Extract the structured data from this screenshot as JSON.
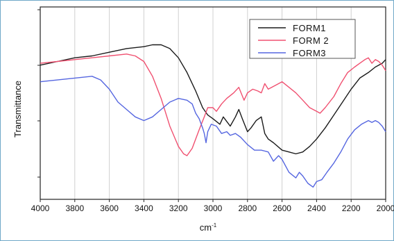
{
  "chart_data": {
    "type": "line",
    "xlabel": "cm",
    "xlabel_superscript": "-1",
    "ylabel": "Transmittance",
    "xlim": [
      4000,
      2000
    ],
    "x_reversed": true,
    "x_ticks": [
      "4000",
      "3800",
      "3600",
      "3400",
      "3200",
      "3000",
      "2800",
      "2600",
      "2400",
      "2200",
      "2000"
    ],
    "grid": "vertical",
    "legend_position": "top-right",
    "y_units_shown": false,
    "ylim": [
      0,
      100
    ],
    "series": [
      {
        "name": "FORM1",
        "color": "#1a1a1a",
        "points": [
          [
            4000,
            70
          ],
          [
            3900,
            72
          ],
          [
            3800,
            74
          ],
          [
            3700,
            75
          ],
          [
            3600,
            77
          ],
          [
            3500,
            79
          ],
          [
            3400,
            80
          ],
          [
            3350,
            81
          ],
          [
            3300,
            81
          ],
          [
            3250,
            79
          ],
          [
            3200,
            74
          ],
          [
            3150,
            66
          ],
          [
            3100,
            56
          ],
          [
            3060,
            47
          ],
          [
            3030,
            43
          ],
          [
            3000,
            41
          ],
          [
            2960,
            38
          ],
          [
            2940,
            42
          ],
          [
            2900,
            37
          ],
          [
            2870,
            42
          ],
          [
            2850,
            46
          ],
          [
            2830,
            41
          ],
          [
            2800,
            34
          ],
          [
            2780,
            36
          ],
          [
            2750,
            40
          ],
          [
            2720,
            42
          ],
          [
            2700,
            33
          ],
          [
            2680,
            30
          ],
          [
            2650,
            28
          ],
          [
            2600,
            24
          ],
          [
            2560,
            23
          ],
          [
            2520,
            22
          ],
          [
            2480,
            23
          ],
          [
            2440,
            26
          ],
          [
            2400,
            30
          ],
          [
            2350,
            36
          ],
          [
            2300,
            43
          ],
          [
            2250,
            50
          ],
          [
            2200,
            57
          ],
          [
            2150,
            63
          ],
          [
            2100,
            66
          ],
          [
            2060,
            69
          ],
          [
            2020,
            71
          ],
          [
            2000,
            73
          ]
        ]
      },
      {
        "name": "FORM 2",
        "color": "#f05070",
        "points": [
          [
            4000,
            71
          ],
          [
            3900,
            72
          ],
          [
            3800,
            73
          ],
          [
            3700,
            74
          ],
          [
            3600,
            75
          ],
          [
            3500,
            76
          ],
          [
            3450,
            75
          ],
          [
            3400,
            72
          ],
          [
            3350,
            64
          ],
          [
            3300,
            52
          ],
          [
            3250,
            37
          ],
          [
            3200,
            26
          ],
          [
            3170,
            22
          ],
          [
            3150,
            21
          ],
          [
            3120,
            25
          ],
          [
            3080,
            35
          ],
          [
            3050,
            42
          ],
          [
            3030,
            47
          ],
          [
            3000,
            47
          ],
          [
            2980,
            45
          ],
          [
            2950,
            49
          ],
          [
            2920,
            52
          ],
          [
            2880,
            55
          ],
          [
            2850,
            58
          ],
          [
            2820,
            51
          ],
          [
            2800,
            55
          ],
          [
            2770,
            57
          ],
          [
            2740,
            56
          ],
          [
            2720,
            55
          ],
          [
            2700,
            60
          ],
          [
            2680,
            57
          ],
          [
            2640,
            59
          ],
          [
            2600,
            61
          ],
          [
            2560,
            58
          ],
          [
            2520,
            55
          ],
          [
            2480,
            51
          ],
          [
            2440,
            47
          ],
          [
            2400,
            45
          ],
          [
            2380,
            44
          ],
          [
            2350,
            47
          ],
          [
            2300,
            53
          ],
          [
            2260,
            60
          ],
          [
            2220,
            66
          ],
          [
            2180,
            69
          ],
          [
            2150,
            71
          ],
          [
            2120,
            73
          ],
          [
            2100,
            74
          ],
          [
            2080,
            71
          ],
          [
            2060,
            73
          ],
          [
            2040,
            72
          ],
          [
            2020,
            70
          ],
          [
            2000,
            67
          ]
        ]
      },
      {
        "name": "FORM3",
        "color": "#5566e0",
        "points": [
          [
            4000,
            61
          ],
          [
            3900,
            62
          ],
          [
            3800,
            63
          ],
          [
            3700,
            64
          ],
          [
            3650,
            62
          ],
          [
            3600,
            57
          ],
          [
            3550,
            50
          ],
          [
            3500,
            46
          ],
          [
            3450,
            42
          ],
          [
            3400,
            40
          ],
          [
            3350,
            42
          ],
          [
            3300,
            46
          ],
          [
            3250,
            50
          ],
          [
            3200,
            52
          ],
          [
            3150,
            51
          ],
          [
            3120,
            49
          ],
          [
            3100,
            44
          ],
          [
            3080,
            41
          ],
          [
            3060,
            36
          ],
          [
            3050,
            33
          ],
          [
            3040,
            28
          ],
          [
            3030,
            34
          ],
          [
            3010,
            38
          ],
          [
            2980,
            37
          ],
          [
            2950,
            33
          ],
          [
            2920,
            34
          ],
          [
            2900,
            32
          ],
          [
            2870,
            33
          ],
          [
            2840,
            31
          ],
          [
            2800,
            27
          ],
          [
            2760,
            24
          ],
          [
            2720,
            24
          ],
          [
            2680,
            23
          ],
          [
            2650,
            18
          ],
          [
            2620,
            21
          ],
          [
            2600,
            19
          ],
          [
            2560,
            12
          ],
          [
            2520,
            9
          ],
          [
            2500,
            12
          ],
          [
            2480,
            10
          ],
          [
            2450,
            6
          ],
          [
            2420,
            4
          ],
          [
            2400,
            7
          ],
          [
            2370,
            8
          ],
          [
            2340,
            12
          ],
          [
            2300,
            17
          ],
          [
            2260,
            23
          ],
          [
            2220,
            30
          ],
          [
            2180,
            35
          ],
          [
            2140,
            38
          ],
          [
            2100,
            40
          ],
          [
            2080,
            39
          ],
          [
            2060,
            40
          ],
          [
            2040,
            39
          ],
          [
            2020,
            37
          ],
          [
            2000,
            34
          ]
        ]
      }
    ]
  }
}
